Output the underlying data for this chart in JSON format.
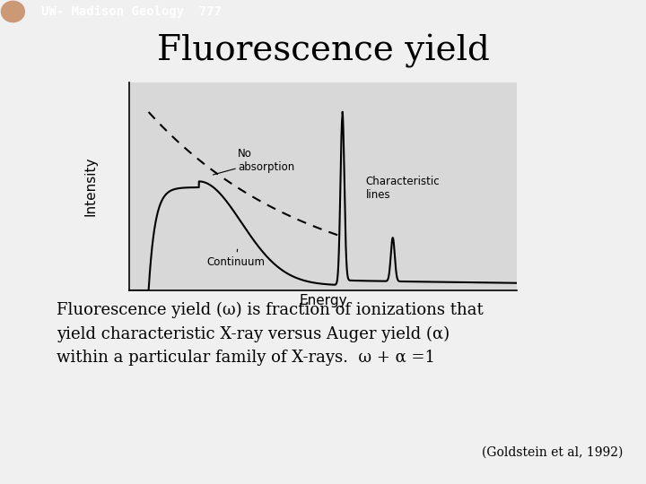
{
  "title": "Fluorescence yield",
  "title_fontsize": 28,
  "background_color": "#f0f0f0",
  "header_bg_color": "#d44000",
  "header_text": "UW- Madison Geology  777",
  "header_fontsize": 10,
  "body_text_line1": "Fluorescence yield (ω) is fraction of ionizations that",
  "body_text_line2": "yield characteristic X-ray versus Auger yield (α)",
  "body_text_line3": "within a particular family of X-rays.  ω + α =1",
  "body_fontsize": 13,
  "citation": "(Goldstein et al, 1992)",
  "citation_fontsize": 10,
  "plot_bg_color": "#d8d8d8",
  "axis_label_intensity": "Intensity",
  "axis_label_energy": "Energy",
  "label_no_absorption": "No\nabsorption",
  "label_continuum": "Continuum",
  "label_characteristic": "Characteristic\nlines"
}
